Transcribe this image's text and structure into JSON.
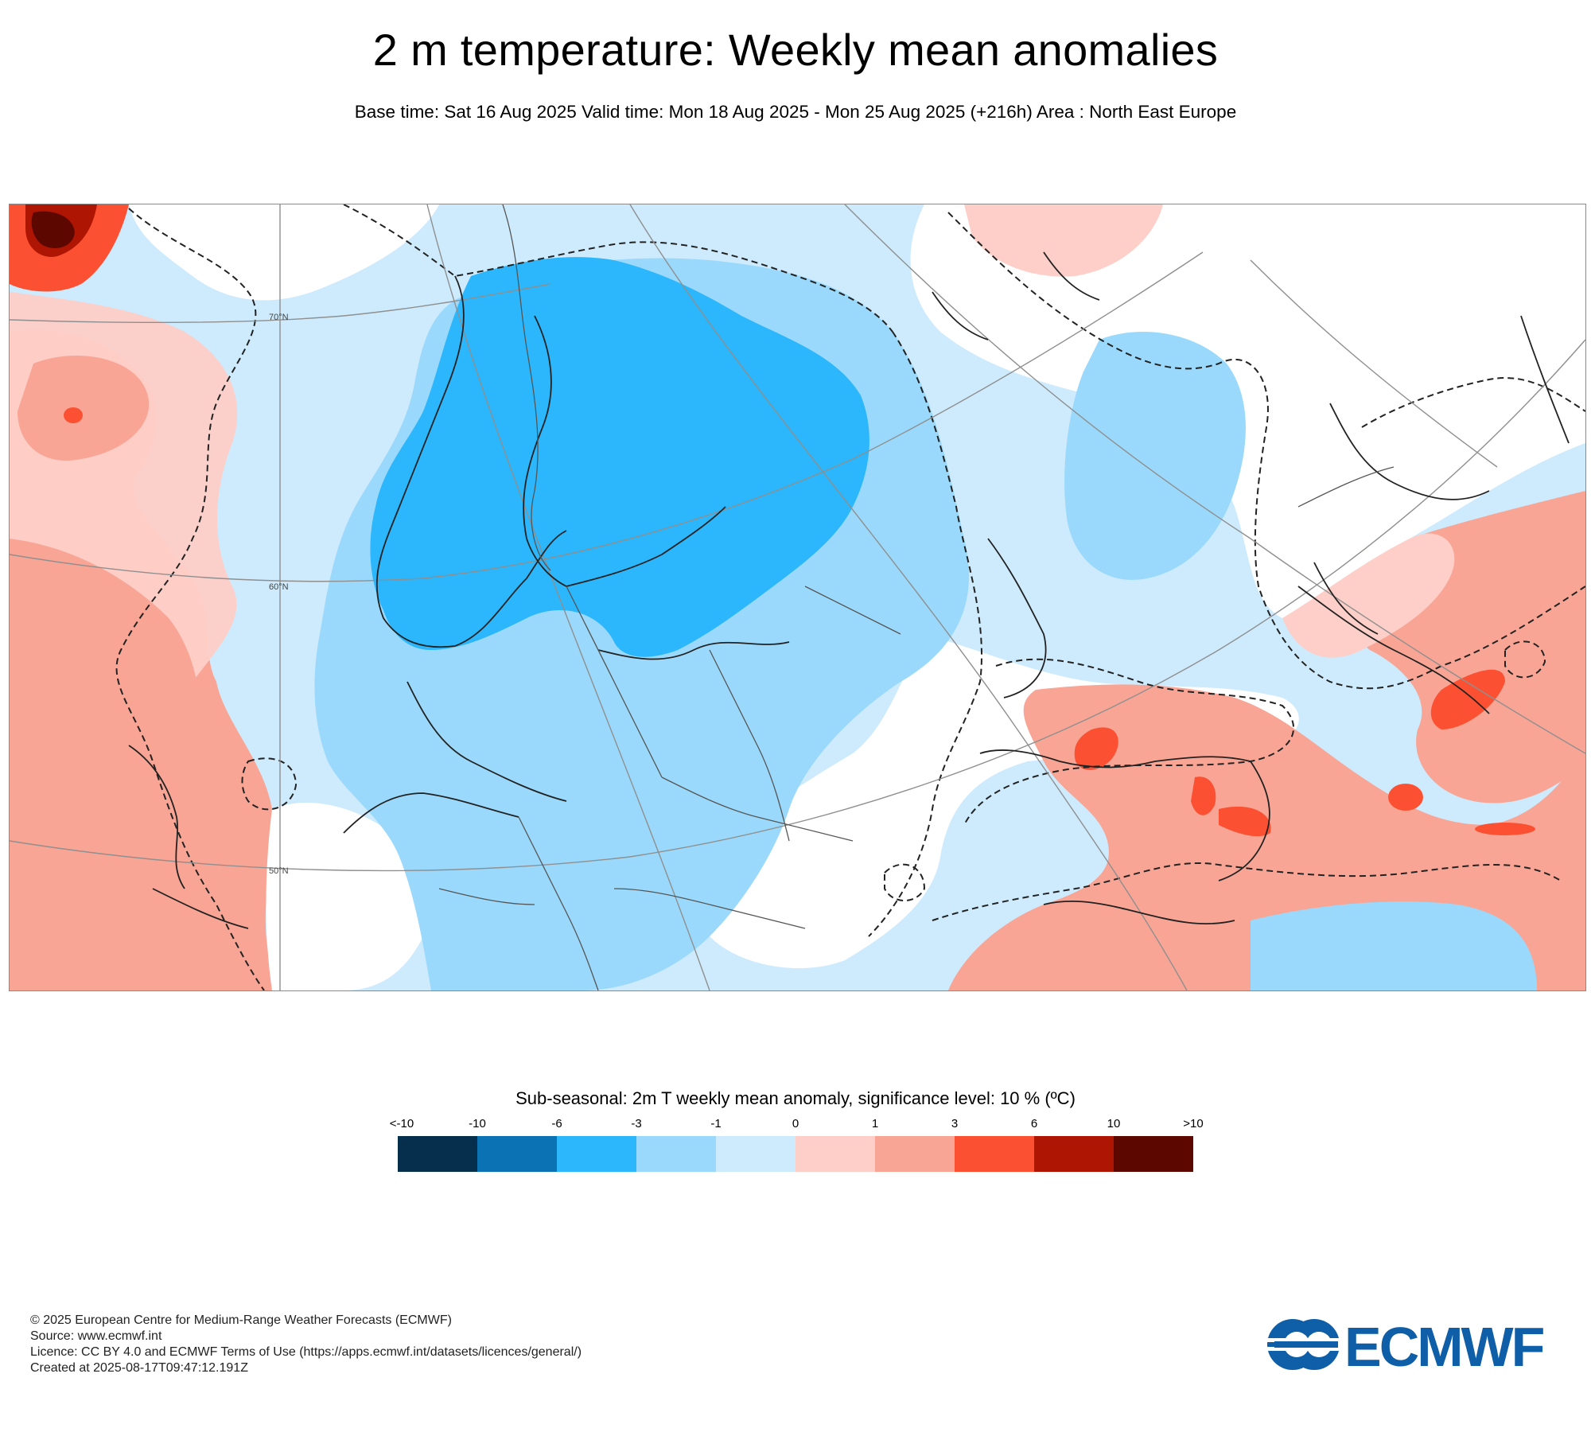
{
  "header": {
    "title": "2 m temperature: Weekly mean anomalies",
    "subtitle": "Base time: Sat 16 Aug 2025 Valid time: Mon 18 Aug 2025 - Mon 25 Aug 2025 (+216h) Area : North East Europe"
  },
  "map": {
    "graticule_labels": [
      "70°N",
      "60°N",
      "50°N"
    ]
  },
  "legend": {
    "title": "Sub-seasonal: 2m T weekly mean anomaly, significance level: 10 % (ºC)",
    "tick_labels": [
      "<-10",
      "-10",
      "-6",
      "-3",
      "-1",
      "0",
      "1",
      "3",
      "6",
      "10",
      ">10"
    ],
    "bin_colors": [
      "#052f4d",
      "#0b73b3",
      "#2cb6fb",
      "#9ad9fb",
      "#cdebfd",
      "#fdcfc8",
      "#f9a595",
      "#fb5132",
      "#ae1503",
      "#5c0801"
    ]
  },
  "colors": {
    "strong_cold": "#2cb6fb",
    "cold": "#9ad9fb",
    "weak_cold": "#cdebfd",
    "weak_warm": "#fdcfc8",
    "warm": "#f9a595",
    "strong_warm": "#fb5132",
    "extreme_warm": "#ae1503",
    "very_extreme_warm": "#5c0801",
    "logo_blue": "#0f5ea8"
  },
  "footer": {
    "copyright": "© 2025 European Centre for Medium-Range Weather Forecasts (ECMWF)",
    "source": "Source: www.ecmwf.int",
    "licence": "Licence: CC BY 4.0 and ECMWF Terms of Use (https://apps.ecmwf.int/datasets/licences/general/)",
    "created": "Created at 2025-08-17T09:47:12.191Z"
  },
  "logo": {
    "text": "ECMWF"
  }
}
